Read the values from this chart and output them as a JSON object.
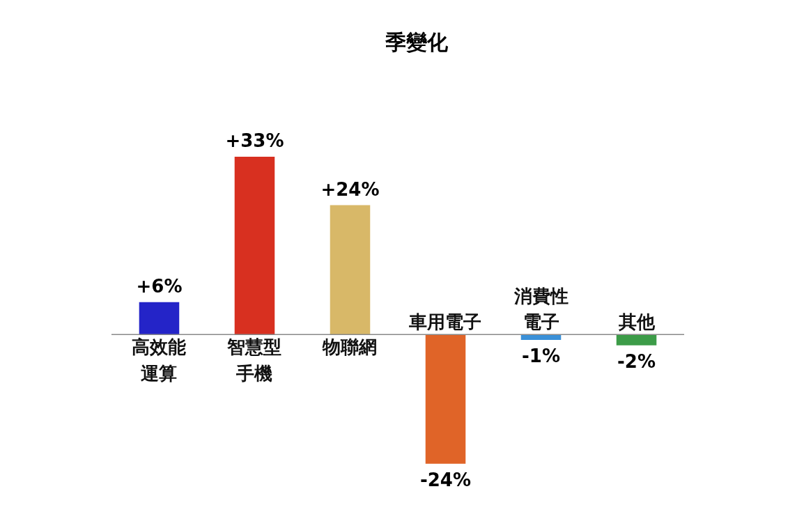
{
  "chart_data": {
    "type": "bar",
    "title": "季變化",
    "categories": [
      "高效能運算",
      "智慧型手機",
      "物聯網",
      "車用電子",
      "消費性電子",
      "其他"
    ],
    "values": [
      6,
      33,
      24,
      -24,
      -1,
      -2
    ],
    "colors": [
      "#2424c8",
      "#d83020",
      "#d8b868",
      "#e06428",
      "#3a90d8",
      "#3c9c48"
    ],
    "value_labels": [
      "+6%",
      "+33%",
      "+24%",
      "-24%",
      "-1%",
      "-2%"
    ]
  }
}
